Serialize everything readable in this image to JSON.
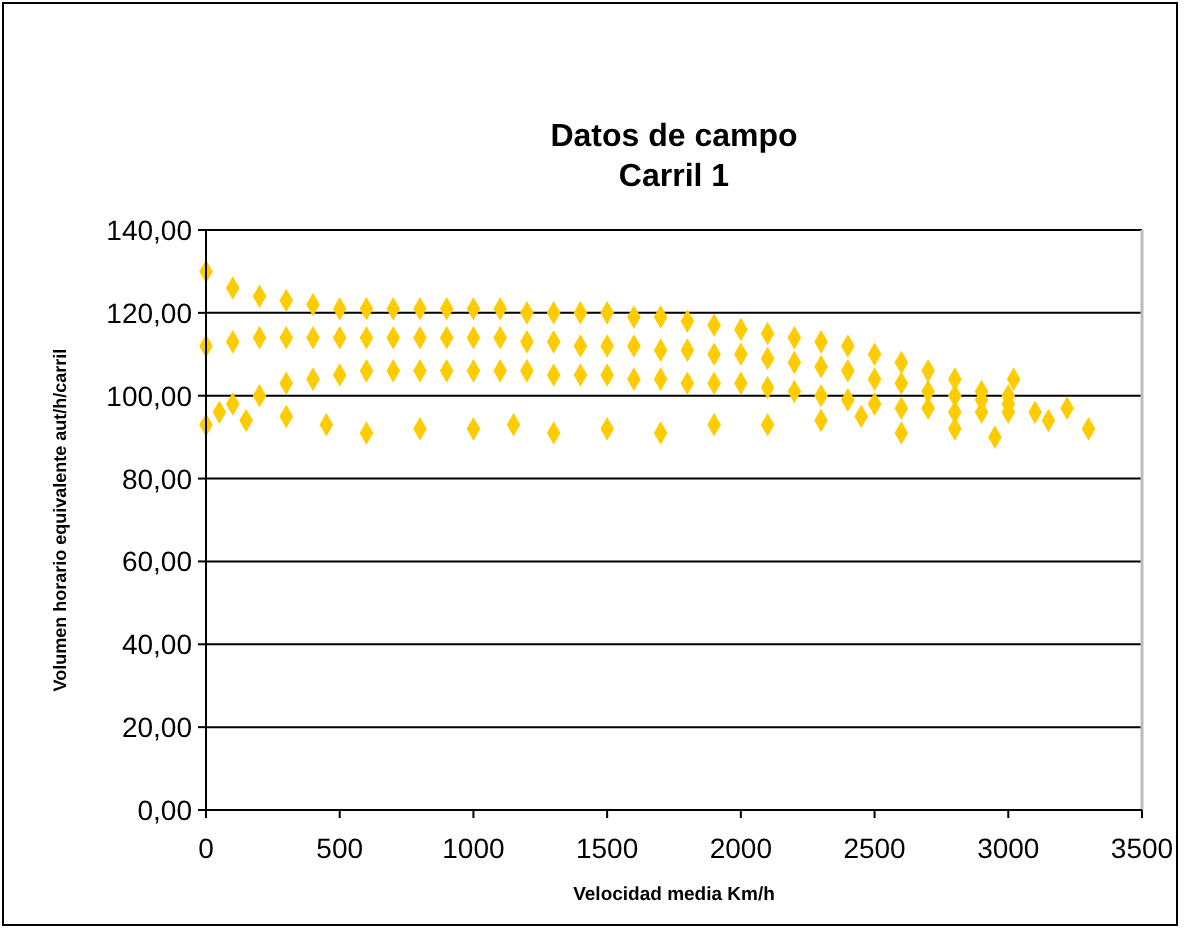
{
  "chart_data": {
    "type": "scatter",
    "title": "Datos de campo",
    "subtitle": "Carril 1",
    "xlabel": "Velocidad media  Km/h",
    "ylabel": "Volumen horario equivalente aut/h/carril",
    "xlim": [
      0,
      3500
    ],
    "xticks": [
      0,
      500,
      1000,
      1500,
      2000,
      2500,
      3000,
      3500
    ],
    "ylim": [
      0,
      140
    ],
    "yticks": [
      {
        "value": 0,
        "label": "0,00"
      },
      {
        "value": 20,
        "label": "20,00"
      },
      {
        "value": 40,
        "label": "40,00"
      },
      {
        "value": 60,
        "label": "60,00"
      },
      {
        "value": 80,
        "label": "80,00"
      },
      {
        "value": 100,
        "label": "100,00"
      },
      {
        "value": 120,
        "label": "120,00"
      },
      {
        "value": 140,
        "label": "140,00"
      }
    ],
    "grid": "y",
    "marker": "diamond",
    "series": [
      {
        "color": "#ffcc00",
        "x": [
          0,
          0,
          0,
          100,
          100,
          100,
          200,
          200,
          200,
          300,
          300,
          300,
          400,
          400,
          400,
          500,
          500,
          500,
          600,
          600,
          600,
          700,
          700,
          700,
          800,
          800,
          800,
          900,
          900,
          900,
          1000,
          1000,
          1000,
          1100,
          1100,
          1100,
          1200,
          1200,
          1200,
          1300,
          1300,
          1300,
          1400,
          1400,
          1400,
          1500,
          1500,
          1500,
          1600,
          1600,
          1600,
          1700,
          1700,
          1700,
          1800,
          1800,
          1800,
          1900,
          1900,
          1900,
          2000,
          2000,
          2000,
          2100,
          2100,
          2100,
          2200,
          2200,
          2200,
          2300,
          2300,
          2300,
          2400,
          2400,
          2400,
          2500,
          2500,
          2500,
          2600,
          2600,
          2600,
          2700,
          2700,
          2700,
          2800,
          2800,
          2800,
          2900,
          2900,
          2900,
          3000,
          3000,
          3000,
          50,
          150,
          300,
          450,
          600,
          800,
          1000,
          1150,
          1300,
          1500,
          1700,
          1900,
          2100,
          2300,
          2450,
          2600,
          2800,
          2950,
          3020,
          3100,
          3150,
          3220,
          3300
        ],
        "values": [
          130,
          112,
          93,
          126,
          113,
          98,
          124,
          114,
          100,
          123,
          114,
          103,
          122,
          114,
          104,
          121,
          114,
          105,
          121,
          114,
          106,
          121,
          114,
          106,
          121,
          114,
          106,
          121,
          114,
          106,
          121,
          114,
          106,
          121,
          114,
          106,
          120,
          113,
          106,
          120,
          113,
          105,
          120,
          112,
          105,
          120,
          112,
          105,
          119,
          112,
          104,
          119,
          111,
          104,
          118,
          111,
          103,
          117,
          110,
          103,
          116,
          110,
          103,
          115,
          109,
          102,
          114,
          108,
          101,
          113,
          107,
          100,
          112,
          106,
          99,
          110,
          104,
          98,
          108,
          103,
          97,
          106,
          101,
          97,
          104,
          100,
          96,
          101,
          99,
          96,
          100,
          98,
          96,
          96,
          94,
          95,
          93,
          91,
          92,
          92,
          93,
          91,
          92,
          91,
          93,
          93,
          94,
          95,
          91,
          92,
          90,
          104,
          96,
          94,
          97,
          92
        ]
      }
    ]
  }
}
